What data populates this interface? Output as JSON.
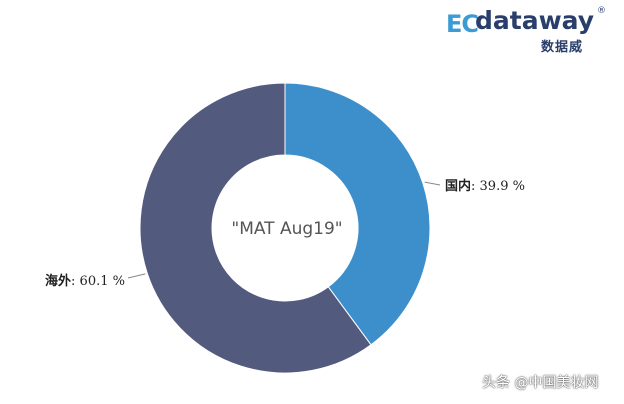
{
  "logo": {
    "mark": "EC",
    "text": "dataway",
    "reg": "®",
    "sub": "数据威"
  },
  "watermark": "头条 @中国美妆网",
  "chart_data": {
    "type": "pie",
    "donut": true,
    "center_label": "\"MAT Aug19\"",
    "slices": [
      {
        "name": "国内",
        "value": 39.9,
        "label": "国内",
        "value_text": "39.9 %",
        "color": "#3d8fcb"
      },
      {
        "name": "海外",
        "value": 60.1,
        "label": "海外",
        "value_text": "60.1 %",
        "color": "#525a7e"
      }
    ]
  }
}
